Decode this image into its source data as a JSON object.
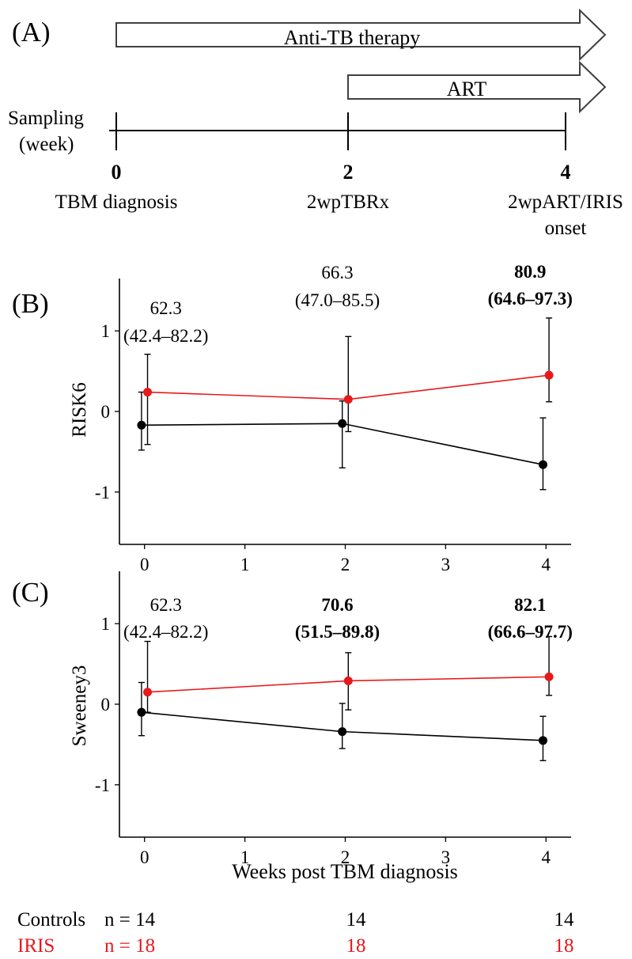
{
  "panel_a": {
    "label": "(A)",
    "arrows": [
      "Anti-TB therapy",
      "ART"
    ],
    "sampling_label": [
      "Sampling",
      "(week)"
    ],
    "timepoints": [
      {
        "week": "0",
        "lines": [
          "TBM diagnosis"
        ]
      },
      {
        "week": "2",
        "lines": [
          "2wpTBRx"
        ]
      },
      {
        "week": "4",
        "lines": [
          "2wpART/IRIS",
          "onset"
        ]
      }
    ]
  },
  "colors": {
    "controls": "#000000",
    "iris": "#e8191c"
  },
  "chart_data": [
    {
      "type": "line",
      "panel": "(B)",
      "ylabel": "RISK6",
      "xlabel": "",
      "x": [
        0,
        2,
        4
      ],
      "xlim": [
        -0.25,
        4.25
      ],
      "xticks": [
        0,
        1,
        2,
        3,
        4
      ],
      "ylim": [
        -1.65,
        1.65
      ],
      "yticks": [
        -1,
        0,
        1
      ],
      "grid": false,
      "series": [
        {
          "name": "Controls",
          "values": [
            -0.17,
            -0.15,
            -0.66
          ],
          "err_low": [
            -0.48,
            -0.7,
            -0.97
          ],
          "err_high": [
            0.24,
            0.13,
            -0.08
          ]
        },
        {
          "name": "IRIS",
          "values": [
            0.24,
            0.15,
            0.45
          ],
          "err_low": [
            -0.41,
            -0.25,
            0.12
          ],
          "err_high": [
            0.71,
            0.93,
            1.16
          ]
        }
      ],
      "annotations": [
        {
          "x": 0,
          "lines": [
            "62.3",
            "(42.4–82.2)"
          ],
          "bold": false
        },
        {
          "x": 2,
          "lines": [
            "66.3",
            "(47.0–85.5)"
          ],
          "bold": false
        },
        {
          "x": 4,
          "lines": [
            "80.9",
            "(64.6–97.3)"
          ],
          "bold": true
        }
      ]
    },
    {
      "type": "line",
      "panel": "(C)",
      "ylabel": "Sweeney3",
      "xlabel": "Weeks post TBM diagnosis",
      "x": [
        0,
        2,
        4
      ],
      "xlim": [
        -0.25,
        4.25
      ],
      "xticks": [
        0,
        1,
        2,
        3,
        4
      ],
      "ylim": [
        -1.65,
        1.65
      ],
      "yticks": [
        -1,
        0,
        1
      ],
      "grid": false,
      "series": [
        {
          "name": "Controls",
          "values": [
            -0.1,
            -0.34,
            -0.45
          ],
          "err_low": [
            -0.39,
            -0.55,
            -0.7
          ],
          "err_high": [
            0.27,
            0.01,
            -0.15
          ]
        },
        {
          "name": "IRIS",
          "values": [
            0.15,
            0.29,
            0.34
          ],
          "err_low": [
            -0.1,
            -0.07,
            0.11
          ],
          "err_high": [
            0.78,
            0.64,
            0.84
          ]
        }
      ],
      "annotations": [
        {
          "x": 0,
          "lines": [
            "62.3",
            "(42.4–82.2)"
          ],
          "bold": false
        },
        {
          "x": 2,
          "lines": [
            "70.6",
            "(51.5–89.8)"
          ],
          "bold": true
        },
        {
          "x": 4,
          "lines": [
            "82.1",
            "(66.6–97.7)"
          ],
          "bold": true
        }
      ]
    }
  ],
  "n_table": [
    {
      "group": "Controls",
      "n_label": "n = 14",
      "counts": [
        "14",
        "14"
      ],
      "color": "#000000"
    },
    {
      "group": "IRIS",
      "n_label": "n = 18",
      "counts": [
        "18",
        "18"
      ],
      "color": "#e8191c"
    }
  ]
}
